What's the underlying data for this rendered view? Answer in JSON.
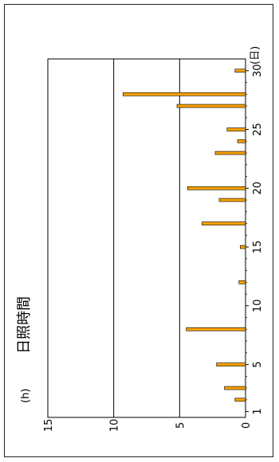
{
  "chart_data": {
    "type": "bar",
    "orientation": "rotated-vertical",
    "title": "日照時間",
    "ylabel_unit": "(h)",
    "xlabel_unit": "(日)",
    "y_ticks": [
      "15",
      "10",
      "5",
      "0"
    ],
    "x_ticks": [
      "1",
      "5",
      "10",
      "15",
      "20",
      "25",
      "30"
    ],
    "ylim": [
      0,
      15
    ],
    "xlim": [
      0.5,
      31
    ],
    "grid": true,
    "bar_color": "#f5a000",
    "bar_edge_color": "#000000",
    "x": [
      1,
      2,
      3,
      4,
      5,
      6,
      7,
      8,
      9,
      10,
      11,
      12,
      13,
      14,
      15,
      16,
      17,
      18,
      19,
      20,
      21,
      22,
      23,
      24,
      25,
      26,
      27,
      28,
      29,
      30
    ],
    "values": [
      0,
      0.8,
      1.6,
      0,
      2.2,
      0,
      0,
      4.5,
      0,
      0,
      0,
      0.5,
      0,
      0,
      0.4,
      0,
      3.3,
      0,
      2.0,
      4.4,
      0,
      0,
      2.3,
      0.6,
      1.4,
      0,
      5.2,
      9.3,
      0,
      0.8
    ]
  }
}
